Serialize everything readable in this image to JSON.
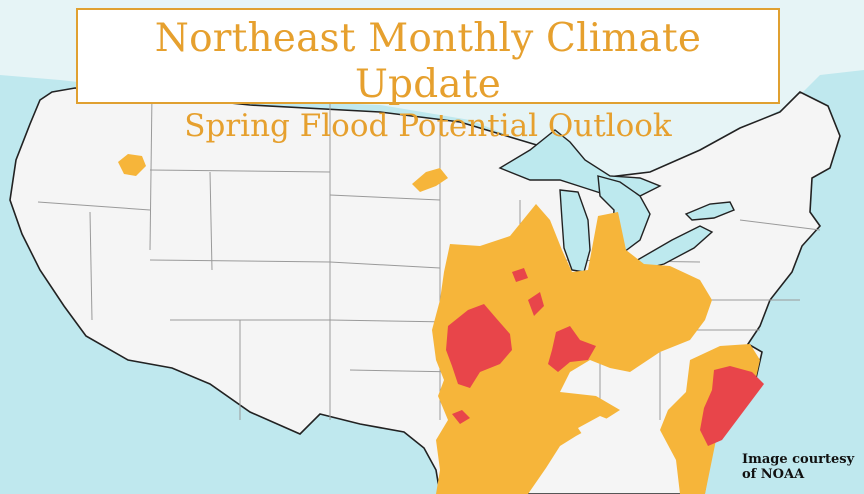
{
  "title": "Northeast Monthly Climate Update",
  "subtitle": "Spring Flood Potential Outlook",
  "credit": {
    "line1": "Image courtesy",
    "line2": "of NOAA"
  },
  "colors": {
    "ocean": "#bfe8ee",
    "land": "#f5f5f5",
    "lakes": "#bde9ee",
    "moderate_flood_risk": "#f6b53a",
    "major_flood_risk": "#e8454a",
    "title_text": "#e6a02e",
    "border": "#222222"
  }
}
